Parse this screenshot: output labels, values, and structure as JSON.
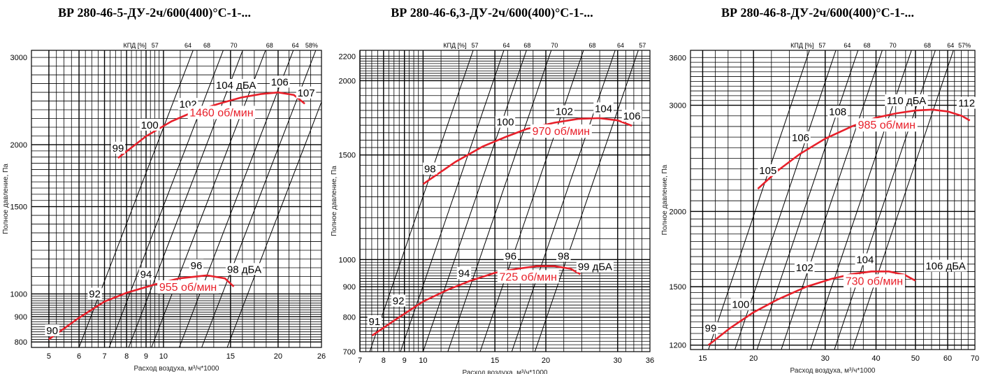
{
  "chart_data": [
    {
      "type": "line",
      "title": "ВР 280-46-5-ДУ-2ч/600(400)°С-1-...",
      "xlabel": "Расход воздуха, м³/ч*1000",
      "ylabel": "Полное давление, Па",
      "efficiency_title": "КПД [%]",
      "x_scale": "log",
      "y_scale": "log",
      "xlim": [
        4.5,
        26
      ],
      "ylim": [
        780,
        3100
      ],
      "xticks": [
        5,
        6,
        7,
        8,
        9,
        10,
        15,
        20,
        26
      ],
      "yticks": [
        800,
        900,
        1000,
        1500,
        2000,
        3000
      ],
      "grid": true,
      "efficiency_lines": [
        {
          "label": "57",
          "x": 6.0,
          "y": 780,
          "label_x": 9.5
        },
        {
          "label": "64",
          "x": 7.2,
          "y": 780,
          "label_x": 11.6
        },
        {
          "label": "68",
          "x": 8.1,
          "y": 780,
          "label_x": 13.0
        },
        {
          "label": "70",
          "x": 9.3,
          "y": 780,
          "label_x": 15.3
        },
        {
          "label": "68",
          "x": 11.0,
          "y": 780,
          "label_x": 19.0
        },
        {
          "label": "64",
          "x": 12.6,
          "y": 780,
          "label_x": 22.2
        },
        {
          "label": "58%",
          "x": 14.7,
          "y": 780,
          "label_x": 24.5
        }
      ],
      "series": [
        {
          "name": "1460 об/мин",
          "rpm_label_x": 14.2,
          "x": [
            7.6,
            9.0,
            10.5,
            12.0,
            14.0,
            16.0,
            18.0,
            20.0,
            22.0,
            23.5
          ],
          "y": [
            1880,
            2080,
            2230,
            2330,
            2420,
            2490,
            2530,
            2550,
            2520,
            2420
          ],
          "noise_labels": [
            {
              "text": "99",
              "x": 7.6,
              "y": 1950
            },
            {
              "text": "100",
              "x": 9.2,
              "y": 2170
            },
            {
              "text": "102",
              "x": 11.6,
              "y": 2390
            },
            {
              "text": "104 дБА",
              "x": 15.5,
              "y": 2610
            },
            {
              "text": "106",
              "x": 20.2,
              "y": 2650
            },
            {
              "text": "107",
              "x": 23.7,
              "y": 2520
            }
          ]
        },
        {
          "name": "955 об/мин",
          "rpm_label_x": 11.6,
          "x": [
            5.0,
            6.0,
            7.0,
            8.0,
            9.5,
            11.0,
            13.0,
            14.5,
            15.3
          ],
          "y": [
            810,
            895,
            965,
            1005,
            1045,
            1075,
            1090,
            1075,
            1035
          ],
          "noise_labels": [
            {
              "text": "90",
              "x": 5.1,
              "y": 835
            },
            {
              "text": "92",
              "x": 6.6,
              "y": 990
            },
            {
              "text": "94",
              "x": 9.0,
              "y": 1085
            },
            {
              "text": "96",
              "x": 12.2,
              "y": 1130
            },
            {
              "text": "98 дБА",
              "x": 16.3,
              "y": 1110
            }
          ]
        }
      ]
    },
    {
      "type": "line",
      "title": "ВР 280-46-6,3-ДУ-2ч/600(400)°С-1-...",
      "xlabel": "Расход воздуха, м³/ч*1000",
      "ylabel": "Полное давление, Па",
      "efficiency_title": "КПД [%]",
      "x_scale": "log",
      "y_scale": "log",
      "xlim": [
        7,
        36
      ],
      "ylim": [
        700,
        2250
      ],
      "xticks": [
        7,
        8,
        9,
        10,
        15,
        20,
        30,
        36
      ],
      "yticks": [
        700,
        800,
        900,
        1000,
        1500,
        2000,
        2200
      ],
      "grid": true,
      "efficiency_lines": [
        {
          "label": "57",
          "x": 7.4,
          "y": 700,
          "label_x": 13.4
        },
        {
          "label": "64",
          "x": 8.8,
          "y": 700,
          "label_x": 16.0
        },
        {
          "label": "68",
          "x": 10.0,
          "y": 700,
          "label_x": 18.0
        },
        {
          "label": "70",
          "x": 11.5,
          "y": 700,
          "label_x": 21.0
        },
        {
          "label": "68",
          "x": 13.8,
          "y": 700,
          "label_x": 26.0
        },
        {
          "label": "64",
          "x": 16.5,
          "y": 700,
          "label_x": 30.5
        },
        {
          "label": "57",
          "x": 18.8,
          "y": 700,
          "label_x": 34.5
        }
      ],
      "series": [
        {
          "name": "970 об/мин",
          "rpm_label_x": 21.8,
          "x": [
            10.0,
            12.0,
            14.0,
            16.0,
            18.0,
            21.0,
            24.0,
            27.0,
            30.0,
            32.5
          ],
          "y": [
            1340,
            1460,
            1550,
            1610,
            1660,
            1700,
            1725,
            1730,
            1715,
            1680
          ],
          "noise_labels": [
            {
              "text": "98",
              "x": 10.4,
              "y": 1410
            },
            {
              "text": "100",
              "x": 15.9,
              "y": 1690
            },
            {
              "text": "102",
              "x": 22.2,
              "y": 1760
            },
            {
              "text": "104",
              "x": 27.7,
              "y": 1780
            },
            {
              "text": "106",
              "x": 32.5,
              "y": 1730
            }
          ]
        },
        {
          "name": "725 об/мин",
          "rpm_label_x": 18.1,
          "x": [
            7.5,
            8.5,
            10.0,
            11.5,
            13.0,
            15.0,
            17.0,
            19.0,
            21.0,
            23.0,
            24.3
          ],
          "y": [
            745,
            790,
            850,
            890,
            920,
            950,
            965,
            975,
            975,
            965,
            945
          ],
          "noise_labels": [
            {
              "text": "91",
              "x": 7.6,
              "y": 780
            },
            {
              "text": "92",
              "x": 8.7,
              "y": 845
            },
            {
              "text": "94",
              "x": 12.6,
              "y": 940
            },
            {
              "text": "96",
              "x": 16.4,
              "y": 1005
            },
            {
              "text": "98",
              "x": 22.1,
              "y": 1005
            },
            {
              "text": "99 дБА",
              "x": 26.4,
              "y": 965
            }
          ]
        }
      ]
    },
    {
      "type": "line",
      "title": "ВР 280-46-8-ДУ-2ч/600(400)°С-1-...",
      "xlabel": "Расход воздуха, м³/ч*1000",
      "ylabel": "Полное давление, Па",
      "efficiency_title": "КПД [%]",
      "x_scale": "log",
      "y_scale": "log",
      "xlim": [
        14,
        70
      ],
      "ylim": [
        1180,
        3700
      ],
      "xticks": [
        15,
        20,
        30,
        40,
        50,
        60,
        70
      ],
      "yticks": [
        1200,
        1500,
        2000,
        3000,
        3600
      ],
      "grid": true,
      "efficiency_lines": [
        {
          "label": "57",
          "x": 15.5,
          "y": 1180,
          "label_x": 29.5
        },
        {
          "label": "64",
          "x": 18.0,
          "y": 1180,
          "label_x": 34.0
        },
        {
          "label": "68",
          "x": 20.4,
          "y": 1180,
          "label_x": 38.0
        },
        {
          "label": "70",
          "x": 23.4,
          "y": 1180,
          "label_x": 44.0
        },
        {
          "label": "68",
          "x": 27.6,
          "y": 1180,
          "label_x": 53.5
        },
        {
          "label": "64",
          "x": 31.6,
          "y": 1180,
          "label_x": 61.0
        },
        {
          "label": "57%",
          "x": 35.0,
          "y": 1180,
          "label_x": 66.0
        }
      ],
      "series": [
        {
          "name": "985 об/мин",
          "rpm_label_x": 42.5,
          "x": [
            20.5,
            23.0,
            26.0,
            30.0,
            35.0,
            40.0,
            45.0,
            50.0,
            55.0,
            60.0,
            65.0,
            68.0
          ],
          "y": [
            2180,
            2340,
            2490,
            2640,
            2770,
            2860,
            2910,
            2940,
            2950,
            2930,
            2880,
            2830
          ],
          "noise_labels": [
            {
              "text": "105",
              "x": 21.7,
              "y": 2320
            },
            {
              "text": "106",
              "x": 26.1,
              "y": 2630
            },
            {
              "text": "108",
              "x": 32.2,
              "y": 2900
            },
            {
              "text": "110 дБА",
              "x": 47.5,
              "y": 3030
            },
            {
              "text": "112",
              "x": 66.8,
              "y": 3000
            }
          ]
        },
        {
          "name": "730 об/мин",
          "rpm_label_x": 39.6,
          "x": [
            15.5,
            17.5,
            20.0,
            23.0,
            27.0,
            31.0,
            35.0,
            39.0,
            43.0,
            47.0,
            50.0
          ],
          "y": [
            1200,
            1280,
            1360,
            1430,
            1500,
            1545,
            1575,
            1590,
            1590,
            1570,
            1535
          ],
          "noise_labels": [
            {
              "text": "99",
              "x": 15.7,
              "y": 1270
            },
            {
              "text": "100",
              "x": 18.6,
              "y": 1390
            },
            {
              "text": "102",
              "x": 26.7,
              "y": 1600
            },
            {
              "text": "104",
              "x": 37.6,
              "y": 1650
            },
            {
              "text": "106 дБА",
              "x": 59.3,
              "y": 1610
            }
          ]
        }
      ]
    }
  ]
}
